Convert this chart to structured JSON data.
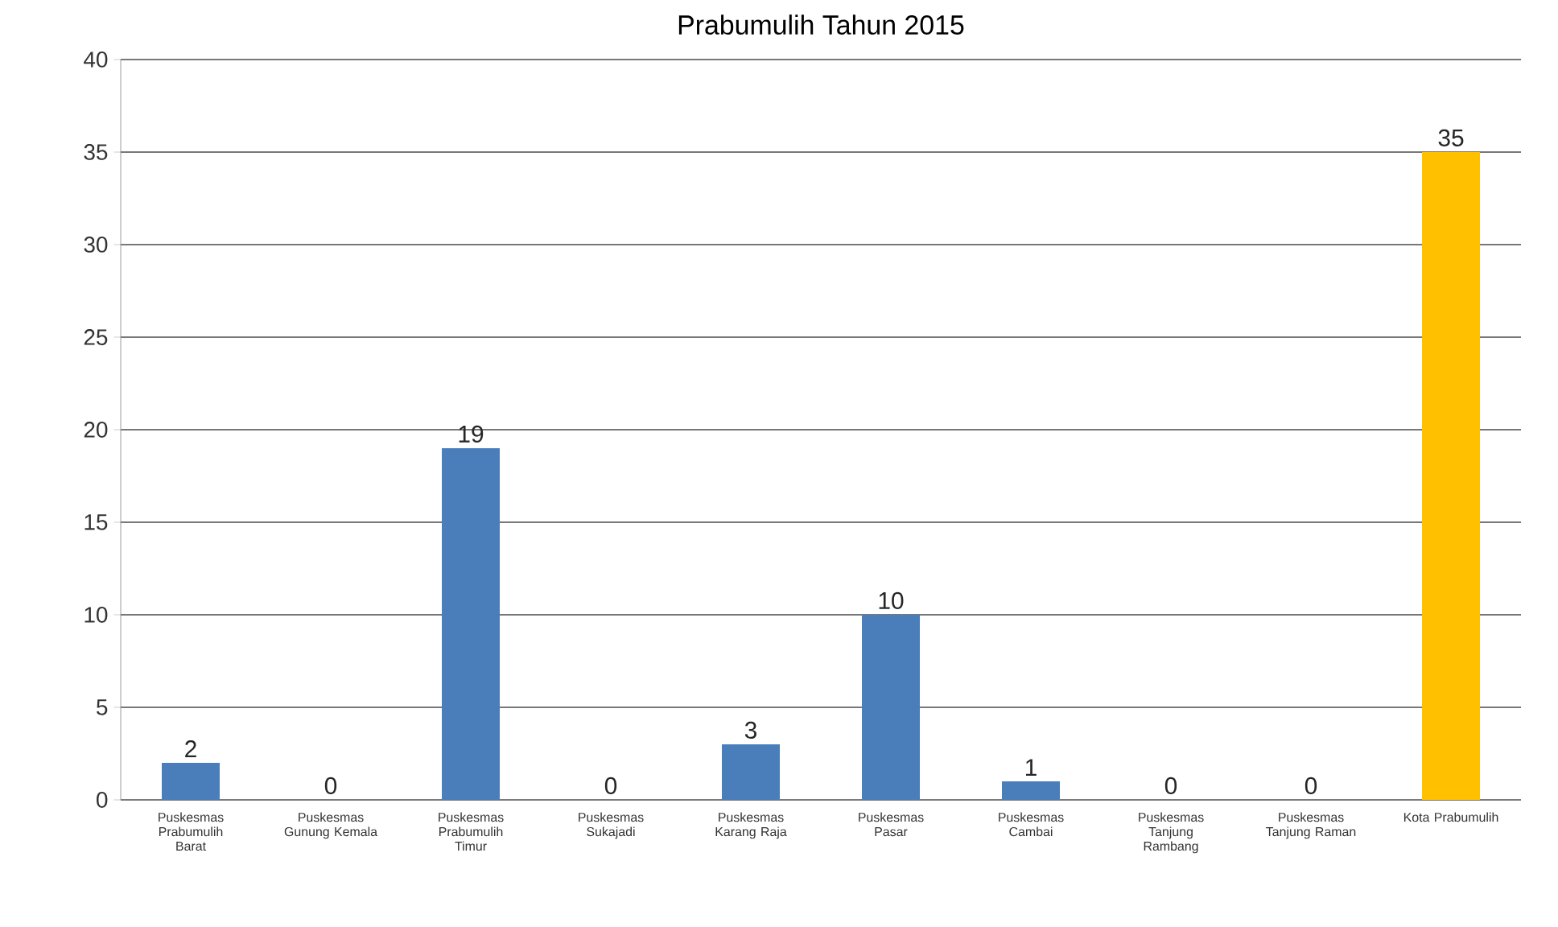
{
  "chart_data": {
    "type": "bar",
    "title": "Prabumulih Tahun 2015",
    "categories": [
      "Puskesmas Prabumulih Barat",
      "Puskesmas Gunung Kemala",
      "Puskesmas Prabumulih Timur",
      "Puskesmas Sukajadi",
      "Puskesmas Karang Raja",
      "Puskesmas Pasar",
      "Puskesmas Cambai",
      "Puskesmas Tanjung Rambang",
      "Puskesmas Tanjung Raman",
      "Kota Prabumulih"
    ],
    "values": [
      2,
      0,
      19,
      0,
      3,
      10,
      1,
      0,
      0,
      35
    ],
    "colors": [
      "#4a7ebb",
      "#4a7ebb",
      "#4a7ebb",
      "#4a7ebb",
      "#4a7ebb",
      "#4a7ebb",
      "#4a7ebb",
      "#4a7ebb",
      "#4a7ebb",
      "#ffc000"
    ],
    "ylim": [
      0,
      40
    ],
    "yticks": [
      0,
      5,
      10,
      15,
      20,
      25,
      30,
      35,
      40
    ],
    "grid": "y",
    "data_labels": true
  }
}
